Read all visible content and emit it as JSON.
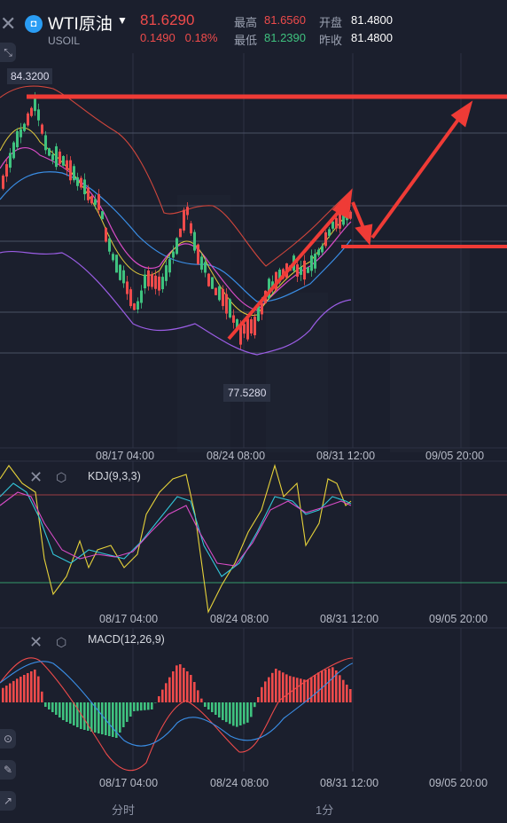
{
  "header": {
    "title": "WTI原油",
    "symbol": "USOIL",
    "price": "81.6290",
    "change": "0.1490",
    "change_pct": "0.18%",
    "high_label": "最高",
    "high_value": "81.6560",
    "low_label": "最低",
    "low_value": "81.2390",
    "open_label": "开盘",
    "open_value": "81.4800",
    "prev_close_label": "昨收",
    "prev_close_value": "81.4800"
  },
  "chart": {
    "high_marker": "84.3200",
    "low_marker": "77.5280",
    "x_labels": [
      "08/17 04:00",
      "08/24 08:00",
      "08/31 12:00",
      "09/05 20:00"
    ]
  },
  "kdj": {
    "label": "KDJ(9,3,3)"
  },
  "macd": {
    "label": "MACD(12,26,9)"
  },
  "tabs": {
    "tab1": "分时",
    "tab2": "1分"
  },
  "colors": {
    "up": "#ef4b4b",
    "down": "#3fc27f",
    "accent": "#2a9df4"
  }
}
